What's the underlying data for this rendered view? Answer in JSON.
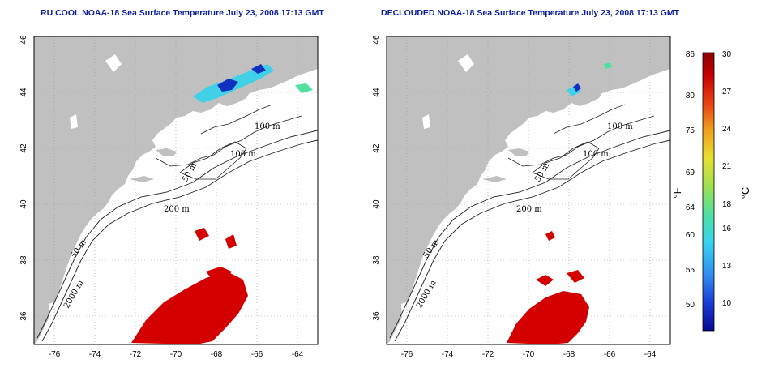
{
  "maps": [
    {
      "id": "left",
      "title": "RU COOL NOAA-18 Sea Surface Temperature July 23, 2008 17:13 GMT",
      "contour_labels": [
        "100 m",
        "100 m",
        "50 m",
        "200 m",
        "50 m",
        "2000 m"
      ]
    },
    {
      "id": "right",
      "title": "DECLOUDED NOAA-18 Sea Surface Temperature July 23, 2008 17:13 GMT",
      "contour_labels": [
        "100 m",
        "100 m",
        "50 m",
        "200 m",
        "50 m",
        "2000 m"
      ]
    }
  ],
  "axes": {
    "lon_ticks": [
      "-76",
      "-74",
      "-72",
      "-70",
      "-68",
      "-66",
      "-64"
    ],
    "lat_ticks": [
      "36",
      "38",
      "40",
      "42",
      "44",
      "46"
    ],
    "lon_range": [
      -77.0,
      -63.0
    ],
    "lat_range": [
      35.0,
      46.0
    ],
    "grid": "dotted"
  },
  "colorbar": {
    "fahrenheit_label": "°F",
    "celsius_label": "°C",
    "fahrenheit_ticks": [
      "86",
      "80",
      "75",
      "69",
      "64",
      "60",
      "55",
      "50"
    ],
    "celsius_ticks": [
      "30",
      "27",
      "24",
      "21",
      "18",
      "16",
      "13",
      "10"
    ],
    "colors": [
      "#08088f",
      "#1a3cd8",
      "#2f8df0",
      "#37d5f0",
      "#50e0a0",
      "#a0e050",
      "#e8e030",
      "#f0a020",
      "#e84010",
      "#c80000",
      "#8a0000"
    ]
  },
  "colors": {
    "land": "#c0c0c0",
    "sea": "#ffffff",
    "warm_sst": "#d40000",
    "cool_sst": "#40d0e8",
    "cold_sst": "#1030c0"
  }
}
